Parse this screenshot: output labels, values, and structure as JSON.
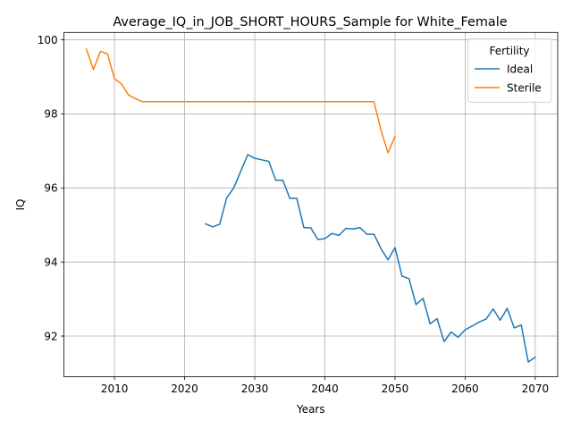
{
  "chart_data": {
    "type": "line",
    "title": "Average_IQ_in_JOB_SHORT_HOURS_Sample for White_Female",
    "xlabel": "Years",
    "ylabel": "IQ",
    "xlim": [
      2002.8,
      2073.2
    ],
    "ylim": [
      90.9,
      100.2
    ],
    "xticks": [
      2010,
      2020,
      2030,
      2040,
      2050,
      2060,
      2070
    ],
    "yticks": [
      92,
      94,
      96,
      98,
      100
    ],
    "grid": true,
    "legend": {
      "title": "Fertility",
      "placement": "top-right"
    },
    "series": [
      {
        "name": "Ideal",
        "color": "#1f77b4",
        "x": [
          2023,
          2024,
          2025,
          2026,
          2027,
          2028,
          2029,
          2030,
          2031,
          2032,
          2033,
          2034,
          2035,
          2036,
          2037,
          2038,
          2039,
          2040,
          2041,
          2042,
          2043,
          2044,
          2045,
          2046,
          2047,
          2048,
          2049,
          2050,
          2051,
          2052,
          2053,
          2054,
          2055,
          2056,
          2057,
          2058,
          2059,
          2060,
          2061,
          2062,
          2063,
          2064,
          2065,
          2066,
          2067,
          2068,
          2069,
          2070
        ],
        "values": [
          95.03,
          94.95,
          95.02,
          95.73,
          96.0,
          96.45,
          96.9,
          96.8,
          96.76,
          96.72,
          96.21,
          96.21,
          95.72,
          95.72,
          94.93,
          94.92,
          94.61,
          94.63,
          94.77,
          94.72,
          94.91,
          94.89,
          94.93,
          94.75,
          94.75,
          94.36,
          94.06,
          94.39,
          93.62,
          93.55,
          92.85,
          93.02,
          92.33,
          92.47,
          91.85,
          92.11,
          91.97,
          92.17,
          92.27,
          92.38,
          92.46,
          92.73,
          92.43,
          92.75,
          92.22,
          92.3,
          91.3,
          91.43
        ]
      },
      {
        "name": "Sterile",
        "color": "#ff7f0e",
        "x": [
          2006,
          2007,
          2008,
          2009,
          2010,
          2011,
          2012,
          2013,
          2014,
          2015,
          2016,
          2017,
          2018,
          2019,
          2020,
          2021,
          2022,
          2023,
          2024,
          2025,
          2026,
          2027,
          2028,
          2029,
          2030,
          2031,
          2032,
          2033,
          2034,
          2035,
          2036,
          2037,
          2038,
          2039,
          2040,
          2041,
          2042,
          2043,
          2044,
          2045,
          2046,
          2047,
          2048,
          2049,
          2050
        ],
        "values": [
          99.75,
          99.2,
          99.69,
          99.62,
          98.95,
          98.81,
          98.51,
          98.41,
          98.33,
          98.33,
          98.33,
          98.33,
          98.33,
          98.33,
          98.33,
          98.33,
          98.33,
          98.33,
          98.33,
          98.33,
          98.33,
          98.33,
          98.33,
          98.33,
          98.33,
          98.33,
          98.33,
          98.33,
          98.33,
          98.33,
          98.33,
          98.33,
          98.33,
          98.33,
          98.33,
          98.33,
          98.33,
          98.33,
          98.33,
          98.33,
          98.33,
          98.33,
          97.56,
          96.95,
          97.39
        ]
      }
    ]
  }
}
